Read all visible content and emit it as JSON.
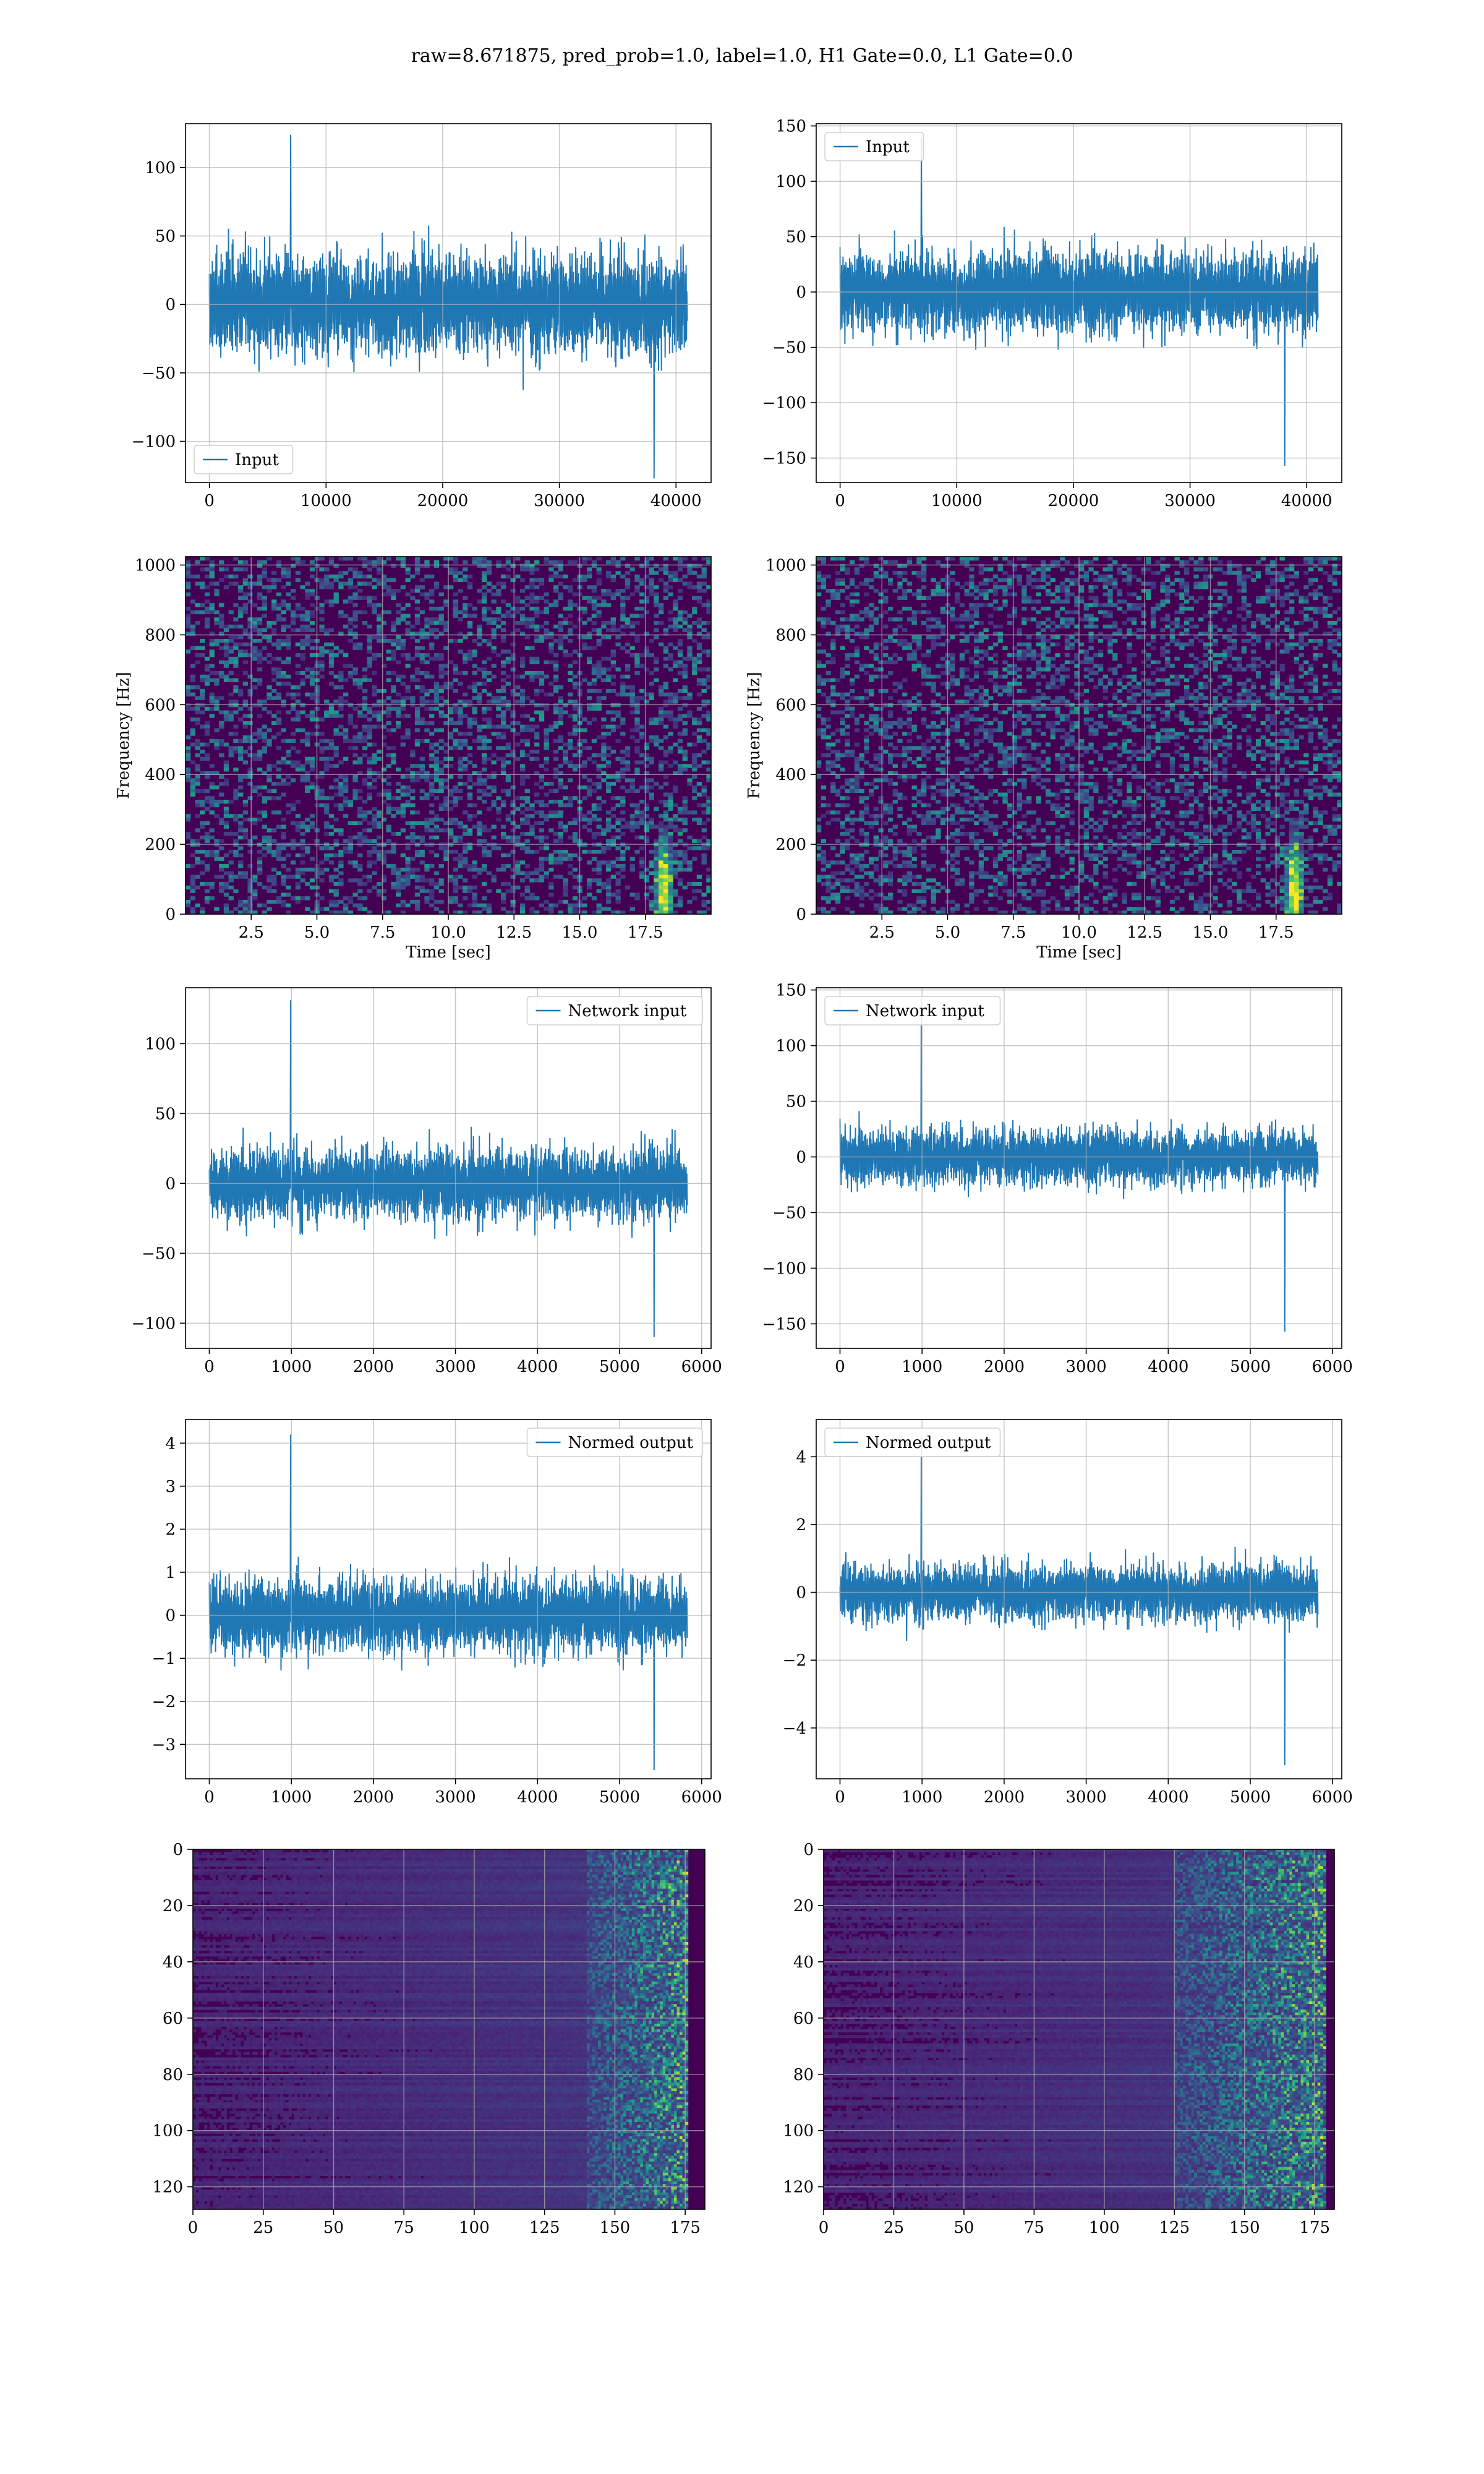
{
  "figure": {
    "title": "raw=8.671875, pred_prob=1.0, label=1.0, H1 Gate=0.0, L1 Gate=0.0"
  },
  "colors": {
    "line": "#1f77b4",
    "grid": "#b0b0b0",
    "viridis_low": "#440154",
    "viridis_high": "#fde725"
  },
  "chart_data": [
    {
      "id": "input-h1",
      "type": "line",
      "legend": "top?",
      "legend_loc": "lower-left",
      "series": [
        {
          "name": "Input"
        }
      ],
      "xlim": [
        -2048,
        43008
      ],
      "ylim": [
        -130,
        132
      ],
      "xticks": [
        0,
        10000,
        20000,
        30000,
        40000
      ],
      "xtick_labels": [
        "0",
        "10000",
        "20000",
        "30000",
        "40000"
      ],
      "yticks": [
        -100,
        -50,
        0,
        50,
        100
      ],
      "ytick_labels": [
        "−100",
        "−50",
        "0",
        "50",
        "100"
      ],
      "x_range": [
        0,
        40960
      ],
      "band": 35,
      "spikes": [
        -127,
        124
      ],
      "xlabel": "",
      "ylabel": "",
      "grid": true
    },
    {
      "id": "input-l1",
      "type": "line",
      "legend_loc": "upper-left",
      "series": [
        {
          "name": "Input"
        }
      ],
      "xlim": [
        -2048,
        43008
      ],
      "ylim": [
        -172,
        152
      ],
      "xticks": [
        0,
        10000,
        20000,
        30000,
        40000
      ],
      "xtick_labels": [
        "0",
        "10000",
        "20000",
        "30000",
        "40000"
      ],
      "yticks": [
        -150,
        -100,
        -50,
        0,
        50,
        100,
        150
      ],
      "ytick_labels": [
        "−150",
        "−100",
        "−50",
        "0",
        "50",
        "100",
        "150"
      ],
      "x_range": [
        0,
        40960
      ],
      "band": 35,
      "spikes": [
        -157,
        140
      ],
      "xlabel": "",
      "ylabel": "",
      "grid": true
    },
    {
      "id": "spectrogram-h1",
      "type": "heatmap",
      "xlim": [
        0,
        20
      ],
      "ylim": [
        0,
        1024
      ],
      "xticks": [
        2.5,
        5.0,
        7.5,
        10.0,
        12.5,
        15.0,
        17.5
      ],
      "xtick_labels": [
        "2.5",
        "5.0",
        "7.5",
        "10.0",
        "12.5",
        "15.0",
        "17.5"
      ],
      "yticks": [
        0,
        200,
        400,
        600,
        800,
        1000
      ],
      "ytick_labels": [
        "0",
        "200",
        "400",
        "600",
        "800",
        "1000"
      ],
      "xlabel": "Time [sec]",
      "ylabel": "Frequency [Hz]",
      "grid": true,
      "colormap": "viridis",
      "hotspot": {
        "t": 18.2,
        "f": 60
      }
    },
    {
      "id": "spectrogram-l1",
      "type": "heatmap",
      "xlim": [
        0,
        20
      ],
      "ylim": [
        0,
        1024
      ],
      "xticks": [
        2.5,
        5.0,
        7.5,
        10.0,
        12.5,
        15.0,
        17.5
      ],
      "xtick_labels": [
        "2.5",
        "5.0",
        "7.5",
        "10.0",
        "12.5",
        "15.0",
        "17.5"
      ],
      "yticks": [
        0,
        200,
        400,
        600,
        800,
        1000
      ],
      "ytick_labels": [
        "0",
        "200",
        "400",
        "600",
        "800",
        "1000"
      ],
      "xlabel": "Time [sec]",
      "ylabel": "Frequency [Hz]",
      "grid": true,
      "colormap": "viridis",
      "hotspot": {
        "t": 18.2,
        "f": 60
      }
    },
    {
      "id": "network-input-h1",
      "type": "line",
      "legend_loc": "upper-right",
      "series": [
        {
          "name": "Network input"
        }
      ],
      "xlim": [
        -290,
        6115
      ],
      "ylim": [
        -118,
        140
      ],
      "xticks": [
        0,
        1000,
        2000,
        3000,
        4000,
        5000,
        6000
      ],
      "xtick_labels": [
        "0",
        "1000",
        "2000",
        "3000",
        "4000",
        "5000",
        "6000"
      ],
      "yticks": [
        -100,
        -50,
        0,
        50,
        100
      ],
      "ytick_labels": [
        "−100",
        "−50",
        "0",
        "50",
        "100"
      ],
      "x_range": [
        0,
        5824
      ],
      "band": 24,
      "spikes": [
        -110,
        131
      ],
      "xlabel": "",
      "ylabel": "",
      "grid": true
    },
    {
      "id": "network-input-l1",
      "type": "line",
      "legend_loc": "upper-left",
      "series": [
        {
          "name": "Network input"
        }
      ],
      "xlim": [
        -290,
        6115
      ],
      "ylim": [
        -172,
        152
      ],
      "xticks": [
        0,
        1000,
        2000,
        3000,
        4000,
        5000,
        6000
      ],
      "xtick_labels": [
        "0",
        "1000",
        "2000",
        "3000",
        "4000",
        "5000",
        "6000"
      ],
      "yticks": [
        -150,
        -100,
        -50,
        0,
        50,
        100,
        150
      ],
      "ytick_labels": [
        "−150",
        "−100",
        "−50",
        "0",
        "50",
        "100",
        "150"
      ],
      "x_range": [
        0,
        5824
      ],
      "band": 24,
      "spikes": [
        -157,
        142
      ],
      "xlabel": "",
      "ylabel": "",
      "grid": true
    },
    {
      "id": "normed-output-h1",
      "type": "line",
      "legend_loc": "upper-right",
      "series": [
        {
          "name": "Normed output"
        }
      ],
      "xlim": [
        -290,
        6115
      ],
      "ylim": [
        -3.8,
        4.55
      ],
      "xticks": [
        0,
        1000,
        2000,
        3000,
        4000,
        5000,
        6000
      ],
      "xtick_labels": [
        "0",
        "1000",
        "2000",
        "3000",
        "4000",
        "5000",
        "6000"
      ],
      "yticks": [
        -3,
        -2,
        -1,
        0,
        1,
        2,
        3,
        4
      ],
      "ytick_labels": [
        "−3",
        "−2",
        "−1",
        "0",
        "1",
        "2",
        "3",
        "4"
      ],
      "x_range": [
        0,
        5824
      ],
      "band": 0.8,
      "spikes": [
        -3.6,
        4.2
      ],
      "xlabel": "",
      "ylabel": "",
      "grid": true
    },
    {
      "id": "normed-output-l1",
      "type": "line",
      "legend_loc": "upper-left",
      "series": [
        {
          "name": "Normed output"
        }
      ],
      "xlim": [
        -290,
        6115
      ],
      "ylim": [
        -5.5,
        5.1
      ],
      "xticks": [
        0,
        1000,
        2000,
        3000,
        4000,
        5000,
        6000
      ],
      "xtick_labels": [
        "0",
        "1000",
        "2000",
        "3000",
        "4000",
        "5000",
        "6000"
      ],
      "yticks": [
        -4,
        -2,
        0,
        2,
        4
      ],
      "ytick_labels": [
        "−4",
        "−2",
        "0",
        "2",
        "4"
      ],
      "x_range": [
        0,
        5824
      ],
      "band": 0.8,
      "spikes": [
        -5.1,
        4.6
      ],
      "xlabel": "",
      "ylabel": "",
      "grid": true
    },
    {
      "id": "activation-h1",
      "type": "heatmap",
      "xlim": [
        0,
        182
      ],
      "ylim": [
        128,
        0
      ],
      "xticks": [
        0,
        25,
        50,
        75,
        100,
        125,
        150,
        175
      ],
      "xtick_labels": [
        "0",
        "25",
        "50",
        "75",
        "100",
        "125",
        "150",
        "175"
      ],
      "yticks": [
        0,
        20,
        40,
        60,
        80,
        100,
        120
      ],
      "ytick_labels": [
        "0",
        "20",
        "40",
        "60",
        "80",
        "100",
        "120"
      ],
      "xlabel": "",
      "ylabel": "",
      "grid": true,
      "colormap": "viridis",
      "active_cols": [
        140,
        175
      ]
    },
    {
      "id": "activation-l1",
      "type": "heatmap",
      "xlim": [
        0,
        182
      ],
      "ylim": [
        128,
        0
      ],
      "xticks": [
        0,
        25,
        50,
        75,
        100,
        125,
        150,
        175
      ],
      "xtick_labels": [
        "0",
        "25",
        "50",
        "75",
        "100",
        "125",
        "150",
        "175"
      ],
      "yticks": [
        0,
        20,
        40,
        60,
        80,
        100,
        120
      ],
      "ytick_labels": [
        "0",
        "20",
        "40",
        "60",
        "80",
        "100",
        "120"
      ],
      "xlabel": "",
      "ylabel": "",
      "grid": true,
      "colormap": "viridis",
      "active_cols": [
        125,
        178
      ]
    }
  ]
}
